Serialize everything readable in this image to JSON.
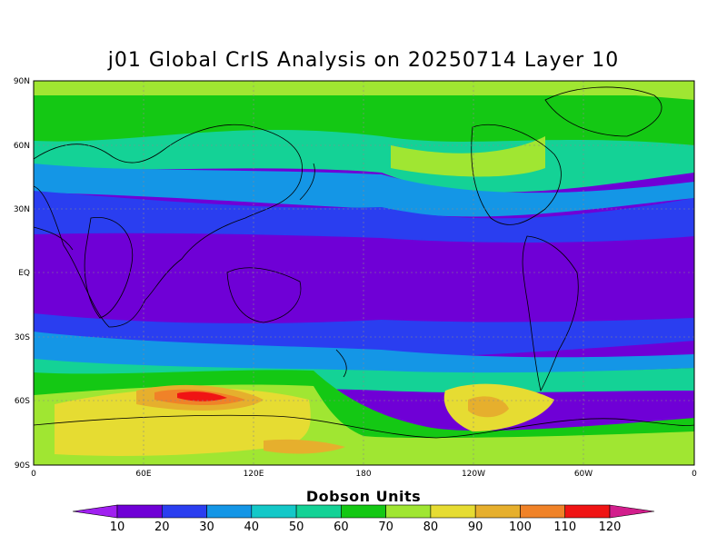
{
  "title": "j01 Global CrIS Analysis on 20250714 Layer 10",
  "map": {
    "lat_labels": [
      "90N",
      "60N",
      "30N",
      "EQ",
      "30S",
      "60S",
      "90S"
    ],
    "lon_labels": [
      "0",
      "60E",
      "120E",
      "180",
      "120W",
      "60W",
      "0"
    ]
  },
  "colorbar": {
    "title": "Dobson Units",
    "levels": [
      "10",
      "20",
      "30",
      "40",
      "50",
      "60",
      "70",
      "80",
      "90",
      "100",
      "110",
      "120"
    ],
    "colors": [
      "#a020f0",
      "#6f00d6",
      "#2a3ef0",
      "#1496e6",
      "#14c8c8",
      "#14d296",
      "#14c814",
      "#a0e632",
      "#e6dc32",
      "#e6af2d",
      "#f08228",
      "#f01414",
      "#d21e8c"
    ]
  }
}
